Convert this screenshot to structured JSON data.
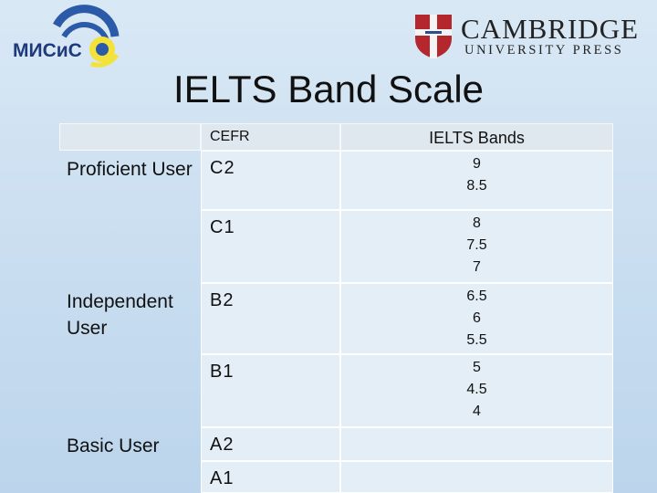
{
  "header": {
    "logo_left": "МИСиС",
    "logo_right": {
      "line1": "CAMBRIDGE",
      "line2": "UNIVERSITY PRESS"
    }
  },
  "title": "IELTS Band Scale",
  "table": {
    "columns": [
      "CEFR",
      "IELTS Bands"
    ],
    "groups": [
      {
        "label": "Proficient User",
        "levels": [
          {
            "cefr": "C2",
            "bands": [
              "9",
              "8.5"
            ]
          },
          {
            "cefr": "C1",
            "bands": [
              "8",
              "7.5",
              "7"
            ]
          }
        ]
      },
      {
        "label": "Independent User",
        "levels": [
          {
            "cefr": "B2",
            "bands": [
              "6.5",
              "6",
              "5.5"
            ]
          },
          {
            "cefr": "B1",
            "bands": [
              "5",
              "4.5",
              "4"
            ]
          }
        ]
      },
      {
        "label": "Basic User",
        "levels": [
          {
            "cefr": "A2",
            "bands": []
          },
          {
            "cefr": "A1",
            "bands": []
          }
        ]
      }
    ]
  }
}
